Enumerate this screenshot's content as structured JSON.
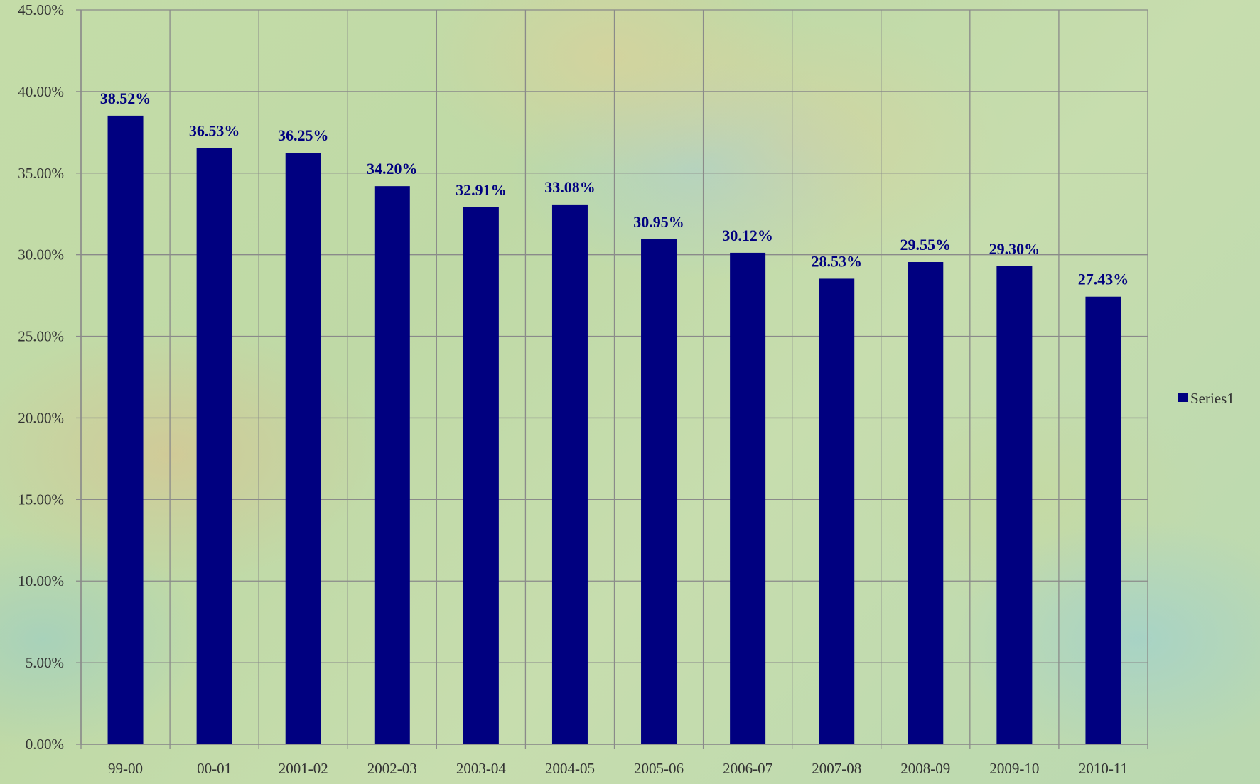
{
  "chart_data": {
    "type": "bar",
    "title": "",
    "xlabel": "",
    "ylabel": "",
    "categories": [
      "99-00",
      "00-01",
      "2001-02",
      "2002-03",
      "2003-04",
      "2004-05",
      "2005-06",
      "2006-07",
      "2007-08",
      "2008-09",
      "2009-10",
      "2010-11"
    ],
    "series": [
      {
        "name": "Series1",
        "values": [
          38.52,
          36.53,
          36.25,
          34.2,
          32.91,
          33.08,
          30.95,
          30.12,
          28.53,
          29.55,
          29.3,
          27.43
        ],
        "data_labels": [
          "38.52%",
          "36.53%",
          "36.25%",
          "34.20%",
          "32.91%",
          "33.08%",
          "30.95%",
          "30.12%",
          "28.53%",
          "29.55%",
          "29.30%",
          "27.43%"
        ],
        "color": "#000080"
      }
    ],
    "ylim": [
      0,
      45
    ],
    "y_ticks": [
      0,
      5,
      10,
      15,
      20,
      25,
      30,
      35,
      40,
      45
    ],
    "y_tick_labels": [
      "0.00%",
      "5.00%",
      "10.00%",
      "15.00%",
      "20.00%",
      "25.00%",
      "30.00%",
      "35.00%",
      "40.00%",
      "45.00%"
    ],
    "grid": true,
    "legend": {
      "position": "right",
      "entries": [
        "Series1"
      ]
    },
    "colors": {
      "bar": "#000080",
      "grid": "#8a8a8a",
      "data_label": "#000080",
      "tick_text": "#333333"
    }
  }
}
